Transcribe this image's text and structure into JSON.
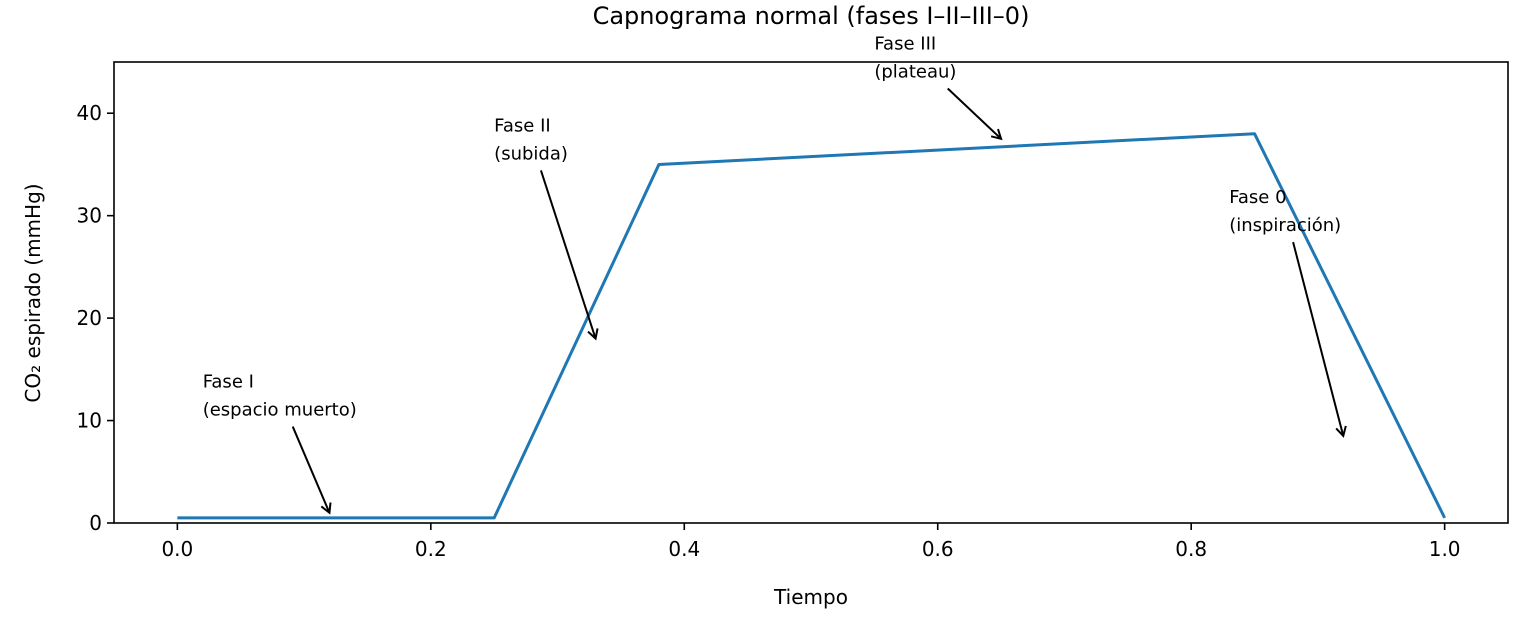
{
  "chart_data": {
    "type": "line",
    "title": "Capnograma normal (fases I–II–III–0)",
    "xlabel": "Tiempo",
    "ylabel": "CO₂ espirado (mmHg)",
    "xlim": [
      -0.05,
      1.05
    ],
    "ylim": [
      0,
      45
    ],
    "grid": false,
    "xticks": [
      0.0,
      0.2,
      0.4,
      0.6,
      0.8,
      1.0
    ],
    "xtick_labels": [
      "0.0",
      "0.2",
      "0.4",
      "0.6",
      "0.8",
      "1.0"
    ],
    "yticks": [
      0,
      10,
      20,
      30,
      40
    ],
    "ytick_labels": [
      "0",
      "10",
      "20",
      "30",
      "40"
    ],
    "series": [
      {
        "color": "#1f77b4",
        "x": [
          0.0,
          0.25,
          0.38,
          0.85,
          1.0
        ],
        "y": [
          0.5,
          0.5,
          35,
          38,
          0.5
        ]
      }
    ],
    "annotations": [
      {
        "lines": [
          "Fase I",
          "(espacio muerto)"
        ],
        "text_xy": [
          0.02,
          10
        ],
        "arrow_xy": [
          0.12,
          1
        ]
      },
      {
        "lines": [
          "Fase II",
          "(subida)"
        ],
        "text_xy": [
          0.25,
          35
        ],
        "arrow_xy": [
          0.33,
          18
        ]
      },
      {
        "lines": [
          "Fase III",
          "(plateau)"
        ],
        "text_xy": [
          0.55,
          43
        ],
        "arrow_xy": [
          0.65,
          37.5
        ]
      },
      {
        "lines": [
          "Fase 0",
          "(inspiración)"
        ],
        "text_xy": [
          0.83,
          28
        ],
        "arrow_xy": [
          0.92,
          8.5
        ]
      }
    ]
  }
}
